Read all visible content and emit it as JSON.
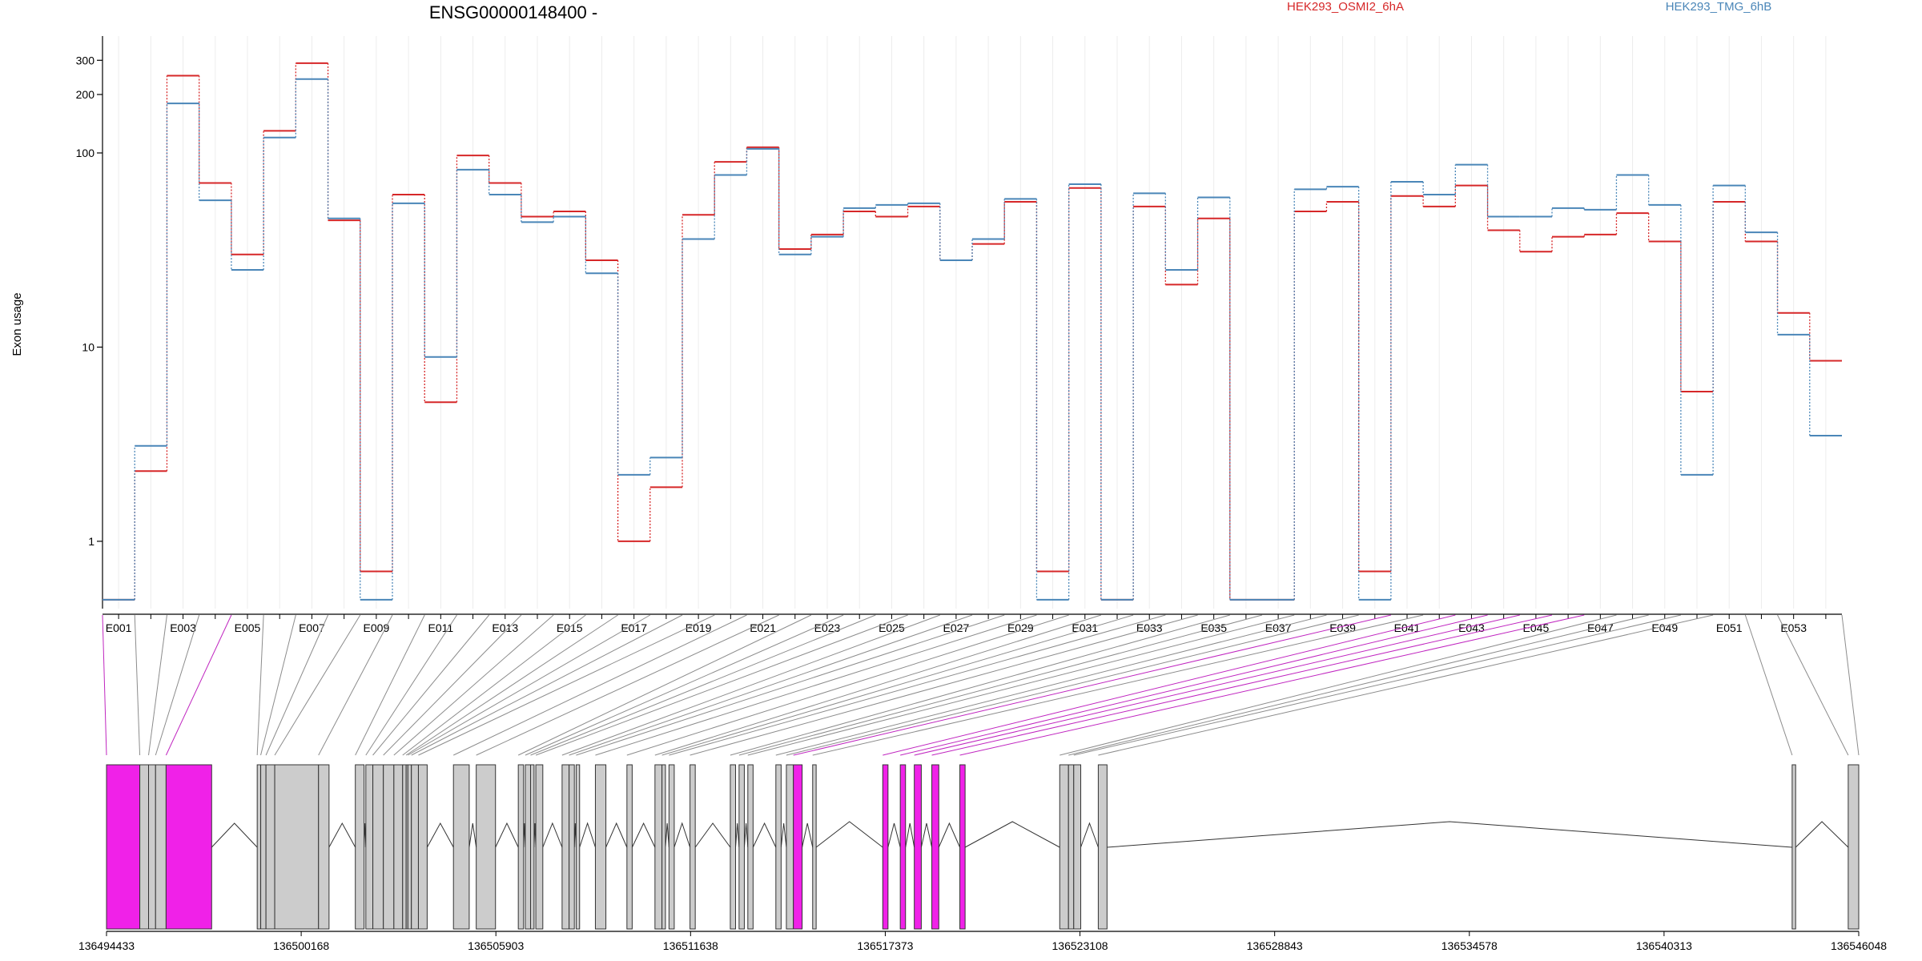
{
  "chart_data": {
    "type": "line",
    "title": "ENSG00000148400 -",
    "ylabel": "Exon usage",
    "xlabel": "",
    "yscale": "log",
    "ylim": [
      0.45,
      400
    ],
    "y_ticks": [
      {
        "label": "300",
        "value": 300
      },
      {
        "label": "200",
        "value": 200
      },
      {
        "label": "100",
        "value": 100
      },
      {
        "label": "10",
        "value": 10
      },
      {
        "label": "1",
        "value": 1
      }
    ],
    "x_tick_labels": [
      "E001",
      "E003",
      "E005",
      "E007",
      "E009",
      "E011",
      "E013",
      "E015",
      "E017",
      "E019",
      "E021",
      "E023",
      "E025",
      "E027",
      "E029",
      "E031",
      "E033",
      "E035",
      "E037",
      "E039",
      "E041",
      "E043",
      "E045",
      "E047",
      "E049",
      "E051",
      "E053"
    ],
    "legend_position": "top",
    "grid": true,
    "series": [
      {
        "name": "HEK293_OSMI2_6hA",
        "color": "#d62728",
        "values": [
          0.5,
          2.3,
          250,
          70,
          30,
          130,
          290,
          45,
          0.7,
          61,
          5.2,
          97,
          70,
          47,
          50,
          28,
          1,
          1.9,
          48,
          90,
          107,
          32,
          38,
          50,
          47,
          53,
          28,
          34,
          56,
          0.7,
          66,
          0.5,
          53,
          21,
          46,
          0.5,
          0.5,
          50,
          56,
          0.7,
          60,
          53,
          68,
          40,
          31,
          37,
          38,
          49,
          35,
          5.9,
          56,
          35,
          15,
          8.5
        ]
      },
      {
        "name": "HEK293_TMG_6hB",
        "color": "#4a86b8",
        "values": [
          0.5,
          3.1,
          180,
          57,
          25,
          120,
          240,
          46,
          0.5,
          55,
          8.9,
          82,
          61,
          44,
          47,
          24,
          2.2,
          2.7,
          36,
          77,
          105,
          30,
          37,
          52,
          54,
          55,
          28,
          36,
          58,
          0.5,
          69,
          0.5,
          62,
          25,
          59,
          0.5,
          0.5,
          65,
          67,
          0.5,
          71,
          61,
          87,
          47,
          47,
          52,
          51,
          77,
          54,
          2.2,
          68,
          39,
          11.6,
          3.5
        ]
      }
    ],
    "genomic_axis": {
      "tick_labels": [
        "136494433",
        "136500168",
        "136505903",
        "136511638",
        "136517373",
        "136523108",
        "136528843",
        "136534578",
        "136540313",
        "136546048"
      ]
    }
  }
}
